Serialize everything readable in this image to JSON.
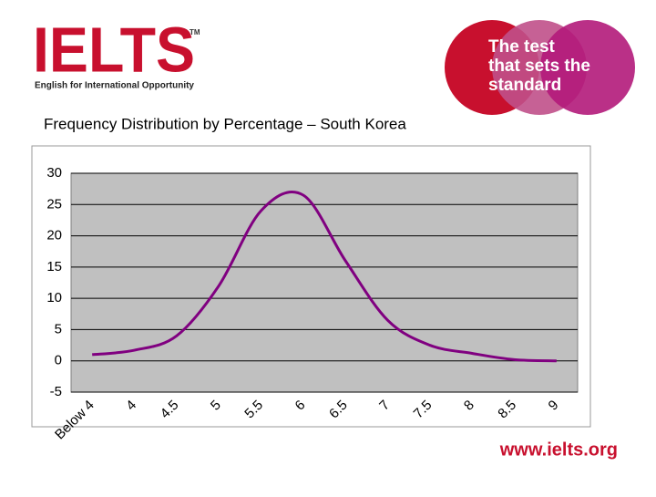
{
  "header": {
    "logo": "IELTS",
    "trademark": "TM",
    "tagline": "English for International Opportunity",
    "slogan": [
      "The test",
      "that sets the",
      "standard"
    ]
  },
  "chart_data": {
    "type": "line",
    "title": "Frequency Distribution by Percentage – South Korea",
    "categories": [
      "Below 4",
      "4",
      "4.5",
      "5",
      "5.5",
      "6",
      "6.5",
      "7",
      "7.5",
      "8",
      "8.5",
      "9"
    ],
    "values": [
      1,
      1.7,
      4,
      12,
      24,
      26.5,
      16,
      6.5,
      2.5,
      1.2,
      0.2,
      0
    ],
    "color": "#800080",
    "ylim": [
      -5,
      30
    ],
    "yticks": [
      -5,
      0,
      5,
      10,
      15,
      20,
      25,
      30
    ],
    "grid": true
  },
  "footer": {
    "url": "www.ielts.org"
  }
}
